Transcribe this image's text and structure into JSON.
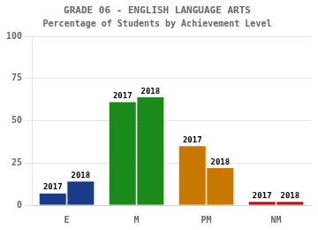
{
  "chart_data": {
    "type": "bar",
    "title": "GRADE 06 - ENGLISH LANGUAGE ARTS",
    "subtitle": "Percentage of Students by Achievement Level",
    "categories": [
      "E",
      "M",
      "PM",
      "NM"
    ],
    "series": [
      {
        "name": "2017",
        "values": [
          7,
          61,
          35,
          2
        ],
        "colors": [
          "#1a3a8a",
          "#1a8a1a",
          "#c87800",
          "#bb1111"
        ]
      },
      {
        "name": "2018",
        "values": [
          14,
          64,
          22,
          2
        ],
        "colors": [
          "#1a3a8a",
          "#1a8a1a",
          "#c87800",
          "#bb1111"
        ]
      }
    ],
    "ylim": [
      0,
      100
    ],
    "yticks": [
      0,
      25,
      50,
      75,
      100
    ],
    "grid": true
  }
}
